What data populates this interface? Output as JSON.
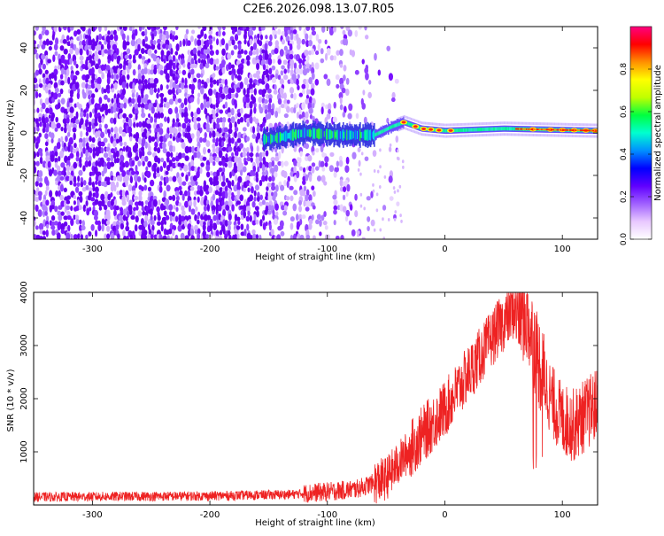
{
  "title": "C2E6.2026.098.13.07.R05",
  "chart_data": [
    {
      "type": "heatmap",
      "xlabel": "Height of straight line (km)",
      "ylabel": "Frequency (Hz)",
      "xlim": [
        -350,
        130
      ],
      "ylim": [
        -50,
        50
      ],
      "xticks": [
        -300,
        -200,
        -100,
        0,
        100
      ],
      "yticks": [
        -40,
        -20,
        0,
        20,
        40
      ],
      "colorbar": {
        "label": "Normalized spectral amplitude",
        "range": [
          0.0,
          1.0
        ],
        "ticks": [
          "0.0",
          "0.2",
          "0.4",
          "0.6",
          "0.8"
        ],
        "colors": [
          "#ffffff",
          "#e8c8ff",
          "#a060ff",
          "#6000ff",
          "#0000ff",
          "#0090ff",
          "#00ffd0",
          "#00ff40",
          "#c0ff00",
          "#ffff00",
          "#ff9000",
          "#ff0000",
          "#ff0080"
        ]
      },
      "signal_track": {
        "description_values_hz": [
          {
            "x": -150,
            "y": -3
          },
          {
            "x": -120,
            "y": 0
          },
          {
            "x": -90,
            "y": -1
          },
          {
            "x": -60,
            "y": -1
          },
          {
            "x": -45,
            "y": 3
          },
          {
            "x": -35,
            "y": 5
          },
          {
            "x": -20,
            "y": 2
          },
          {
            "x": 0,
            "y": 1
          },
          {
            "x": 50,
            "y": 2
          },
          {
            "x": 130,
            "y": 1
          }
        ]
      }
    },
    {
      "type": "line",
      "xlabel": "Height of straight line (km)",
      "ylabel": "SNR (10 * v/v)",
      "xlim": [
        -350,
        130
      ],
      "ylim": [
        0,
        4000
      ],
      "xticks": [
        -300,
        -200,
        -100,
        0,
        100
      ],
      "yticks": [
        1000,
        2000,
        3000,
        4000
      ],
      "series": [
        {
          "name": "SNR",
          "color": "#ee2222",
          "envelope": [
            {
              "x": -350,
              "y": 150
            },
            {
              "x": -200,
              "y": 170
            },
            {
              "x": -130,
              "y": 200
            },
            {
              "x": -100,
              "y": 250
            },
            {
              "x": -75,
              "y": 300
            },
            {
              "x": -50,
              "y": 500
            },
            {
              "x": -35,
              "y": 900
            },
            {
              "x": -20,
              "y": 1300
            },
            {
              "x": 0,
              "y": 1800
            },
            {
              "x": 15,
              "y": 2300
            },
            {
              "x": 30,
              "y": 2800
            },
            {
              "x": 45,
              "y": 3300
            },
            {
              "x": 60,
              "y": 3700
            },
            {
              "x": 70,
              "y": 3500
            },
            {
              "x": 80,
              "y": 2700
            },
            {
              "x": 90,
              "y": 2000
            },
            {
              "x": 100,
              "y": 1600
            },
            {
              "x": 110,
              "y": 1500
            },
            {
              "x": 120,
              "y": 1700
            },
            {
              "x": 130,
              "y": 1900
            }
          ]
        }
      ]
    }
  ]
}
